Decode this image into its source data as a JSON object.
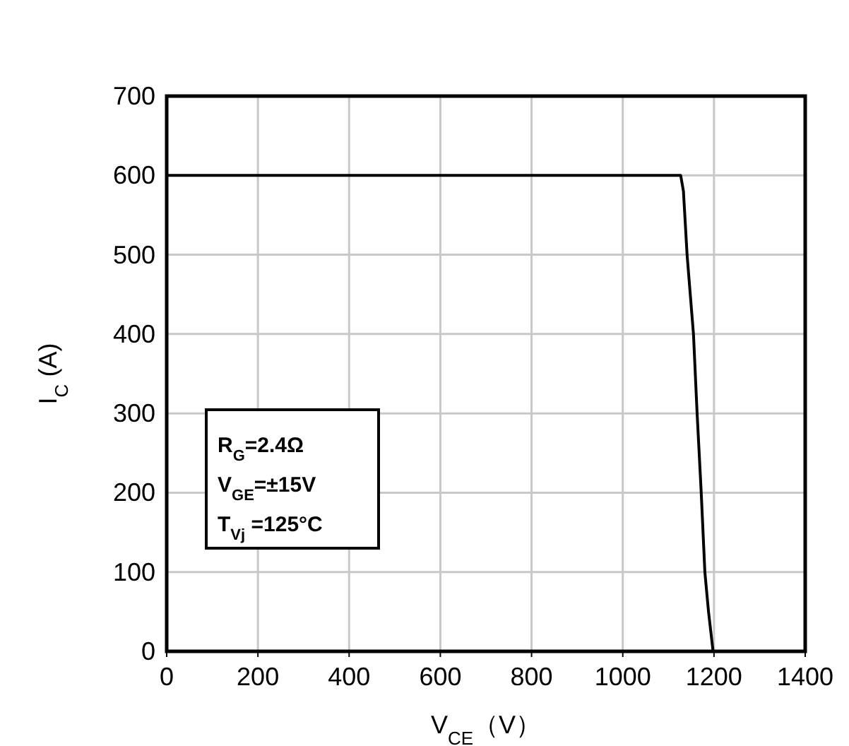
{
  "chart_data": {
    "type": "line",
    "xlabel": "V$_{CE}$（V）",
    "ylabel": "I$_{C}$ (A)",
    "xlim": [
      0,
      1400
    ],
    "xticks": [
      0,
      200,
      400,
      600,
      800,
      1000,
      1200,
      1400
    ],
    "ylim": [
      0,
      700
    ],
    "yticks": [
      0,
      100,
      200,
      300,
      400,
      500,
      600,
      700
    ],
    "grid": true,
    "series": [
      {
        "color": "#000000",
        "x": [
          0,
          1127,
          1133,
          1141,
          1155,
          1163,
          1172,
          1180,
          1188,
          1198
        ],
        "values": [
          600,
          600,
          580,
          500,
          400,
          300,
          200,
          100,
          50,
          0
        ]
      }
    ],
    "annotations": [
      "R$_{G}$=2.4Ω",
      "V$_{GE}$=±15V",
      "T$_{Vj}$ =125°C"
    ]
  }
}
